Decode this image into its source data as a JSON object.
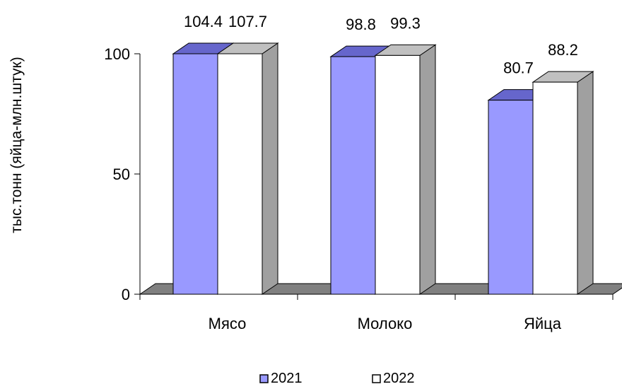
{
  "chart_data": {
    "type": "bar",
    "title": "",
    "xlabel": "",
    "ylabel": "тыс.тонн (яйца-млн.штук)",
    "categories": [
      "Мясо",
      "Молоко",
      "Яйца"
    ],
    "series": [
      {
        "name": "2021",
        "values": [
          104.4,
          98.8,
          80.7
        ],
        "color": "#9999ff"
      },
      {
        "name": "2022",
        "values": [
          107.7,
          99.3,
          88.2
        ],
        "color": "#ffffff"
      }
    ],
    "data_labels": [
      [
        "104.4",
        "98.8",
        "80.7"
      ],
      [
        "107.7",
        "99.3",
        "88.2"
      ]
    ],
    "ylim": [
      0,
      100
    ],
    "yticks": [
      0,
      50,
      100
    ],
    "ytick_labels": [
      "0",
      "50",
      "100"
    ],
    "grid": false,
    "legend_position": "bottom",
    "style": "3d-clustered-column",
    "colors": {
      "floor": "#808080",
      "side_2021": "#7070c0",
      "side_2022": "#a0a0a0",
      "top_2021": "#6666cc",
      "top_2022": "#c0c0c0",
      "outline": "#000000"
    }
  }
}
